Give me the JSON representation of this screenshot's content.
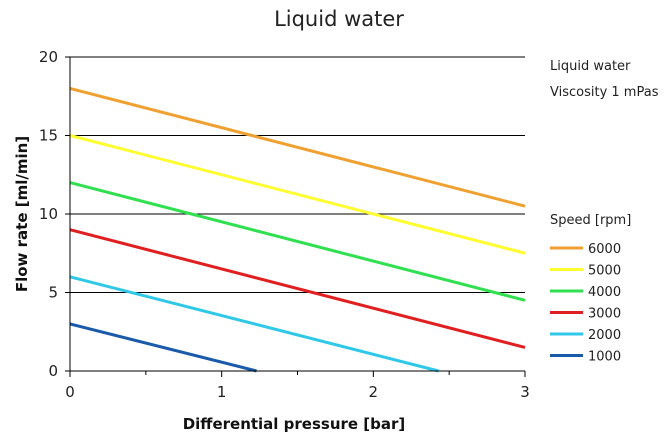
{
  "chart_data": {
    "type": "line",
    "title": "Liquid water",
    "xlabel": "Differential pressure [bar]",
    "ylabel": "Flow rate [ml/min]",
    "xlim": [
      0,
      3
    ],
    "ylim": [
      0,
      20
    ],
    "x_ticks": [
      0,
      1,
      2,
      3
    ],
    "y_ticks": [
      0,
      5,
      10,
      15,
      20
    ],
    "grid": "horizontal",
    "annotations": [
      "Liquid water",
      "Viscosity 1 mPas"
    ],
    "legend_title": "Speed [rpm]",
    "legend_position": "right",
    "series": [
      {
        "name": "6000",
        "color": "#f0a030",
        "points": [
          [
            0,
            18
          ],
          [
            3,
            10.5
          ]
        ]
      },
      {
        "name": "5000",
        "color": "#ffff30",
        "points": [
          [
            0,
            15
          ],
          [
            3,
            7.5
          ]
        ]
      },
      {
        "name": "4000",
        "color": "#30e050",
        "points": [
          [
            0,
            12
          ],
          [
            3,
            4.5
          ]
        ]
      },
      {
        "name": "3000",
        "color": "#e02020",
        "points": [
          [
            0,
            9
          ],
          [
            3,
            1.5
          ]
        ]
      },
      {
        "name": "2000",
        "color": "#30c8e8",
        "points": [
          [
            0,
            6
          ],
          [
            2.43,
            0
          ]
        ]
      },
      {
        "name": "1000",
        "color": "#1a5aaa",
        "points": [
          [
            0,
            3
          ],
          [
            1.23,
            0
          ]
        ]
      }
    ]
  }
}
